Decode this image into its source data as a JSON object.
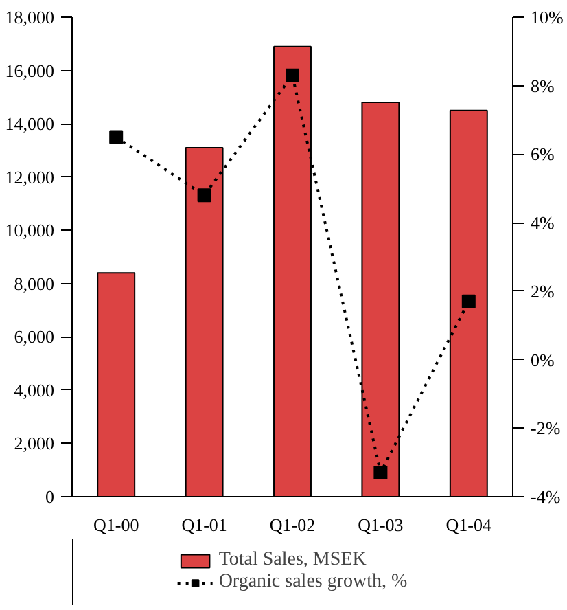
{
  "chart_data": {
    "type": "bar",
    "categories": [
      "Q1-00",
      "Q1-01",
      "Q1-02",
      "Q1-03",
      "Q1-04"
    ],
    "series": [
      {
        "name": "Total Sales, MSEK",
        "color": "#dc4343",
        "values": [
          8400,
          13100,
          16900,
          14800,
          14500
        ]
      },
      {
        "name": "Organic sales growth, %",
        "type": "line",
        "axis": "y2",
        "color": "#000000",
        "marker": "square",
        "line_style": "dotted",
        "values": [
          6.5,
          4.8,
          8.3,
          -3.3,
          1.7
        ]
      }
    ],
    "ylim": [
      0,
      18000
    ],
    "yticks": [
      0,
      {
        "value": 2000,
        "label": "2,000"
      },
      {
        "value": 4000,
        "label": "4,000"
      },
      {
        "value": 6000,
        "label": "6,000"
      },
      {
        "value": 8000,
        "label": "8,000"
      },
      {
        "value": 10000,
        "label": "10,000"
      },
      {
        "value": 12000,
        "label": "12,000"
      },
      {
        "value": 14000,
        "label": "14,000"
      },
      {
        "value": 16000,
        "label": "16,000"
      },
      {
        "value": 18000,
        "label": "18,000"
      }
    ],
    "y2lim": [
      -4,
      10
    ],
    "y2ticks": [
      {
        "value": -4,
        "label": "-4%"
      },
      {
        "value": -2,
        "label": "-2%"
      },
      {
        "value": 0,
        "label": "0%"
      },
      {
        "value": 2,
        "label": "2%"
      },
      {
        "value": 4,
        "label": "4%"
      },
      {
        "value": 6,
        "label": "6%"
      },
      {
        "value": 8,
        "label": "8%"
      },
      {
        "value": 10,
        "label": "10%"
      }
    ],
    "grid": false,
    "legend": "bottom"
  }
}
